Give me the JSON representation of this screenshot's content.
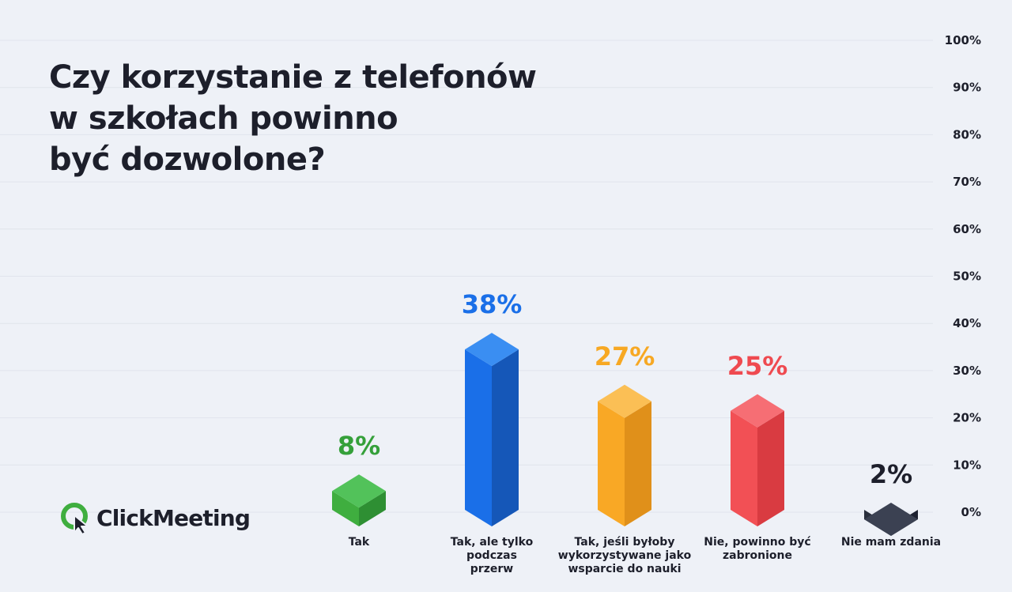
{
  "chart_data": {
    "type": "bar",
    "title_lines": [
      "Czy korzystanie z telefonów",
      "w szkołach powinno",
      "być dozwolone?"
    ],
    "ylim": [
      0,
      100
    ],
    "yticks": [
      "0%",
      "10%",
      "20%",
      "30%",
      "40%",
      "50%",
      "60%",
      "70%",
      "80%",
      "90%",
      "100%"
    ],
    "grid": true,
    "categories": [
      "Tak",
      "Tak, ale tylko podczas przerw",
      "Tak, jeśli byłoby wykorzystywane jako wsparcie do nauki",
      "Nie, powinno być zabronione",
      "Nie mam zdania"
    ],
    "category_lines": [
      [
        "Tak"
      ],
      [
        "Tak, ale tylko",
        "podczas",
        "przerw"
      ],
      [
        "Tak, jeśli byłoby",
        "wykorzystywane jako",
        "wsparcie do nauki"
      ],
      [
        "Nie, powinno być",
        "zabronione"
      ],
      [
        "Nie mam zdania"
      ]
    ],
    "values": [
      8,
      38,
      27,
      25,
      2
    ],
    "value_labels": [
      "8%",
      "38%",
      "27%",
      "25%",
      "2%"
    ],
    "colors": [
      {
        "front": "#3fae3f",
        "side": "#2e8f33",
        "top": "#52c25a",
        "label": "#35a03a"
      },
      {
        "front": "#1a6fe8",
        "side": "#1557b8",
        "top": "#3a8ef2",
        "label": "#1a6fe8"
      },
      {
        "front": "#f9a825",
        "side": "#e0901a",
        "top": "#fbbf55",
        "label": "#f7a823"
      },
      {
        "front": "#f25055",
        "side": "#d93b41",
        "top": "#f66e74",
        "label": "#ef4a50"
      },
      {
        "front": "#2a2f3d",
        "side": "#1d2130",
        "top": "#3b4152",
        "label": "#1d1f2b"
      }
    ]
  },
  "brand": {
    "name": "ClickMeeting",
    "icon": "clickmeeting-logo-icon"
  }
}
